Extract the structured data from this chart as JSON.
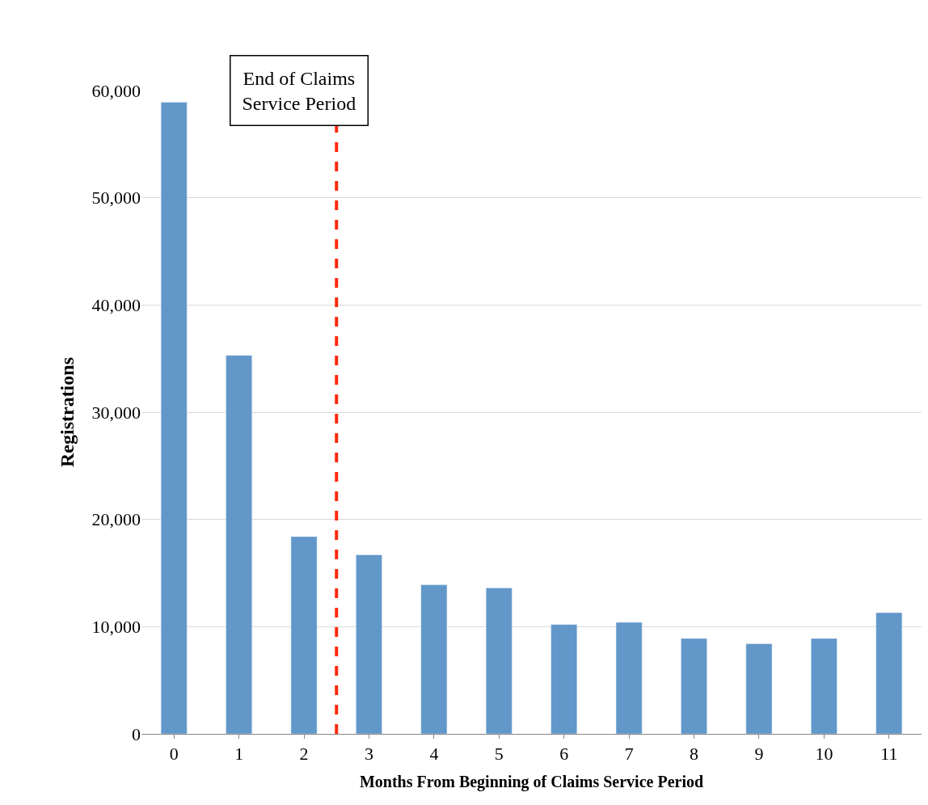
{
  "chart_data": {
    "type": "bar",
    "xlabel": "Months From Beginning of Claims Service Period",
    "ylabel": "Registrations",
    "x": [
      0,
      1,
      2,
      3,
      4,
      5,
      6,
      7,
      8,
      9,
      10,
      11
    ],
    "values": [
      58900,
      35300,
      18400,
      16700,
      13900,
      13600,
      10200,
      10400,
      8900,
      8400,
      8900,
      11300
    ],
    "color": "#6197c9",
    "xlim": [
      -0.5,
      11.5
    ],
    "xticks": [
      0,
      1,
      2,
      3,
      4,
      5,
      6,
      7,
      8,
      9,
      10,
      11
    ],
    "ylim": [
      0,
      60000
    ],
    "yticks": [
      {
        "value": 0,
        "label": "0"
      },
      {
        "value": 10000,
        "label": "10,000"
      },
      {
        "value": 20000,
        "label": "20,000"
      },
      {
        "value": 30000,
        "label": "30,000"
      },
      {
        "value": 40000,
        "label": "40,000"
      },
      {
        "value": 50000,
        "label": "50,000"
      },
      {
        "value": 60000,
        "label": "60,000"
      }
    ],
    "grid": "y",
    "ref_lines": [
      {
        "axis": "x",
        "value": 2.5,
        "label": "End of Claims\nService Period",
        "color": "#ff2a0a",
        "line_style": "dashed"
      }
    ]
  }
}
